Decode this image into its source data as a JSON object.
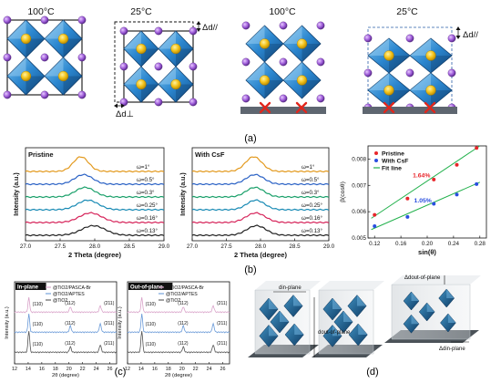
{
  "figure": {
    "a": {
      "label": "(a)",
      "temps": [
        "100°C",
        "25°C",
        "100°C",
        "25°C"
      ],
      "delta_par": "Δd//",
      "delta_perp": "Δd⊥"
    },
    "b": {
      "label": "(b)",
      "pristine": {
        "title": "Pristine",
        "ylabel": "Intensity (a.u.)",
        "xlabel": "2 Theta (degree)",
        "ticks": [
          "27.0",
          "27.5",
          "28.0",
          "28.5",
          "29.0"
        ],
        "angles": [
          "ω=1°",
          "ω=0.5°",
          "ω=0.3°",
          "ω=0.25°",
          "ω=0.16°",
          "ω=0.13°"
        ]
      },
      "csf": {
        "title": "With CsF",
        "ylabel": "Intensity (a.u.)",
        "xlabel": "2 Theta (degree)",
        "ticks": [
          "27.0",
          "27.5",
          "28.0",
          "28.5",
          "29.0"
        ],
        "angles": [
          "ω=1°",
          "ω=0.5°",
          "ω=0.3°",
          "ω=0.25°",
          "ω=0.16°",
          "ω=0.13°"
        ]
      }
    },
    "c": {
      "label": "(c)",
      "inplane": {
        "title": "In-plane",
        "ylabel": "Intensity (a.u.)",
        "xlabel": "2θ (degree)",
        "ticks": [
          "12",
          "14",
          "16",
          "18",
          "20",
          "22",
          "24",
          "26"
        ],
        "legend": [
          "@TiO2/PASCA-Br",
          "@TiO2/APTES",
          "@TiO2"
        ],
        "peaks": [
          "(110)",
          "(112)",
          "(211)"
        ]
      },
      "outplane": {
        "title": "Out-of-plane",
        "ylabel": "Intensity (a.u.)",
        "xlabel": "2θ (degree)",
        "ticks": [
          "12",
          "14",
          "16",
          "18",
          "20",
          "22",
          "24",
          "26"
        ],
        "legend": [
          "@TiO2/PASCA-Br",
          "@TiO2/APTES",
          "@TiO2"
        ],
        "peaks": [
          "(110)",
          "(112)",
          "(211)"
        ]
      }
    },
    "d": {
      "label": "(d)",
      "in_plane": "din-plane",
      "out_plane": "dout-of-plane",
      "delta_out": "Δdout-of-plane",
      "delta_in": "Δdin-plane"
    }
  },
  "chart_data": {
    "type": "scatter",
    "title": "",
    "xlabel": "sin(θ)",
    "ylabel": "β(cosθ)",
    "x_ticks": [
      "0.12",
      "0.16",
      "0.20",
      "0.24",
      "0.28"
    ],
    "y_ticks": [
      "0.005",
      "0.006",
      "0.007",
      "0.008"
    ],
    "xlim": [
      0.11,
      0.29
    ],
    "ylim": [
      0.005,
      0.0085
    ],
    "legend": [
      "Pristine",
      "With CsF",
      "Fit line"
    ],
    "legend_position": "top-left",
    "annotations": [
      "1.64%",
      "1.05%"
    ],
    "series": [
      {
        "name": "Pristine",
        "color": "#e8262b",
        "x": [
          0.12,
          0.17,
          0.21,
          0.245,
          0.275
        ],
        "y": [
          0.00588,
          0.0065,
          0.00722,
          0.00778,
          0.00842
        ]
      },
      {
        "name": "With CsF",
        "color": "#2a4fe0",
        "x": [
          0.12,
          0.17,
          0.21,
          0.245,
          0.275
        ],
        "y": [
          0.00545,
          0.0058,
          0.0063,
          0.00665,
          0.00705
        ]
      }
    ],
    "fits": [
      {
        "x": [
          0.115,
          0.28
        ],
        "y": [
          0.00575,
          0.0085
        ]
      },
      {
        "x": [
          0.115,
          0.28
        ],
        "y": [
          0.00532,
          0.00712
        ]
      }
    ]
  }
}
